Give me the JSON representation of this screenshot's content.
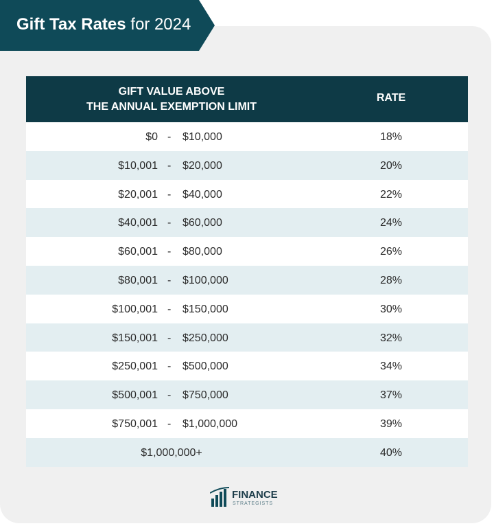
{
  "header": {
    "title_strong": "Gift Tax Rates",
    "title_rest": "for 2024"
  },
  "table": {
    "columns": [
      [
        "GIFT VALUE ABOVE",
        "THE ANNUAL EXEMPTION LIMIT"
      ],
      "RATE"
    ],
    "separator": "-",
    "rows": [
      {
        "from": "$0",
        "to": "$10,000",
        "rate": "18%"
      },
      {
        "from": "$10,001",
        "to": "$20,000",
        "rate": "20%"
      },
      {
        "from": "$20,001",
        "to": "$40,000",
        "rate": "22%"
      },
      {
        "from": "$40,001",
        "to": "$60,000",
        "rate": "24%"
      },
      {
        "from": "$60,001",
        "to": "$80,000",
        "rate": "26%"
      },
      {
        "from": "$80,001",
        "to": "$100,000",
        "rate": "28%"
      },
      {
        "from": "$100,001",
        "to": "$150,000",
        "rate": "30%"
      },
      {
        "from": "$150,001",
        "to": "$250,000",
        "rate": "32%"
      },
      {
        "from": "$250,001",
        "to": "$500,000",
        "rate": "34%"
      },
      {
        "from": "$500,001",
        "to": "$750,000",
        "rate": "37%"
      },
      {
        "from": "$750,001",
        "to": "$1,000,000",
        "rate": "39%"
      },
      {
        "range": "$1,000,000+",
        "rate": "40%"
      }
    ]
  },
  "logo": {
    "name": "FINANCE",
    "tagline": "STRATEGISTS"
  }
}
